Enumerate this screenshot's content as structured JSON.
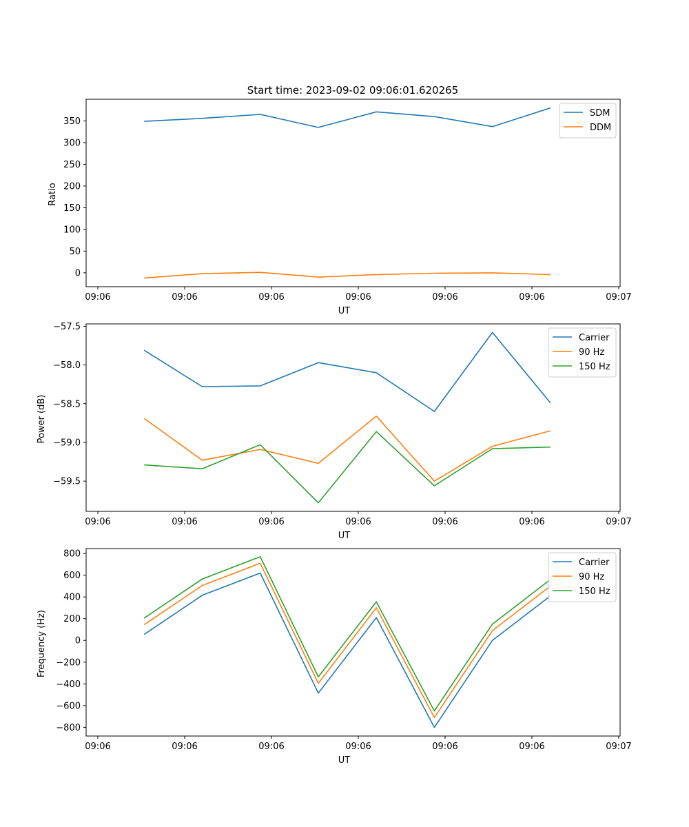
{
  "figure": {
    "title": "Start time: 2023-09-02 09:06:01.620265"
  },
  "chart_data": [
    {
      "type": "line",
      "xlabel": "UT",
      "ylabel": "Ratio",
      "x_tick_labels": [
        "09:06",
        "09:06",
        "09:06",
        "09:06",
        "09:06",
        "09:06",
        "09:07"
      ],
      "y_ticks": [
        0,
        50,
        100,
        150,
        200,
        250,
        300,
        350
      ],
      "ylim": [
        -32,
        400
      ],
      "xlim": [
        0,
        9.2
      ],
      "legend_location": "upper right",
      "x": [
        1,
        2,
        3,
        4,
        5,
        6,
        7,
        8
      ],
      "series": [
        {
          "name": "SDM",
          "color": "#1f77b4",
          "values": [
            349,
            356,
            365,
            335,
            371,
            360,
            337,
            380
          ]
        },
        {
          "name": "DDM",
          "color": "#ff7f0e",
          "values": [
            -12,
            -2,
            1,
            -10,
            -4,
            -1,
            0,
            -4
          ]
        }
      ]
    },
    {
      "type": "line",
      "xlabel": "UT",
      "ylabel": "Power (dB)",
      "x_tick_labels": [
        "09:06",
        "09:06",
        "09:06",
        "09:06",
        "09:06",
        "09:06",
        "09:07"
      ],
      "y_ticks": [
        -59.5,
        -59.0,
        -58.5,
        -58.0,
        -57.5
      ],
      "y_tick_labels": [
        "−59.5",
        "−59.0",
        "−58.5",
        "−58.0",
        "−57.5"
      ],
      "ylim": [
        -59.89,
        -57.47
      ],
      "xlim": [
        0,
        9.2
      ],
      "legend_location": "upper right",
      "x": [
        1,
        2,
        3,
        4,
        5,
        6,
        7,
        8
      ],
      "series": [
        {
          "name": "Carrier",
          "color": "#1f77b4",
          "values": [
            -57.81,
            -58.28,
            -58.27,
            -57.97,
            -58.1,
            -58.6,
            -57.58,
            -58.49
          ]
        },
        {
          "name": "90 Hz",
          "color": "#ff7f0e",
          "values": [
            -58.69,
            -59.23,
            -59.09,
            -59.27,
            -58.66,
            -59.5,
            -59.05,
            -58.85
          ]
        },
        {
          "name": "150 Hz",
          "color": "#2ca02c",
          "values": [
            -59.29,
            -59.34,
            -59.03,
            -59.78,
            -58.86,
            -59.56,
            -59.08,
            -59.06
          ]
        }
      ]
    },
    {
      "type": "line",
      "xlabel": "UT",
      "ylabel": "Frequency (Hz)",
      "x_tick_labels": [
        "09:06",
        "09:06",
        "09:06",
        "09:06",
        "09:06",
        "09:06",
        "09:07"
      ],
      "y_ticks": [
        -800,
        -600,
        -400,
        -200,
        0,
        200,
        400,
        600,
        800
      ],
      "y_tick_labels": [
        "−800",
        "−600",
        "−400",
        "−200",
        "0",
        "200",
        "400",
        "600",
        "800"
      ],
      "ylim": [
        -880,
        845
      ],
      "xlim": [
        0,
        9.2
      ],
      "legend_location": "upper right",
      "x": [
        1,
        2,
        3,
        4,
        5,
        6,
        7,
        8
      ],
      "series": [
        {
          "name": "Carrier",
          "color": "#1f77b4",
          "values": [
            55,
            415,
            620,
            -485,
            210,
            -800,
            0,
            410
          ]
        },
        {
          "name": "90 Hz",
          "color": "#ff7f0e",
          "values": [
            145,
            505,
            710,
            -395,
            300,
            -710,
            90,
            500
          ]
        },
        {
          "name": "150 Hz",
          "color": "#2ca02c",
          "values": [
            205,
            565,
            770,
            -335,
            355,
            -650,
            150,
            560
          ]
        }
      ]
    }
  ]
}
